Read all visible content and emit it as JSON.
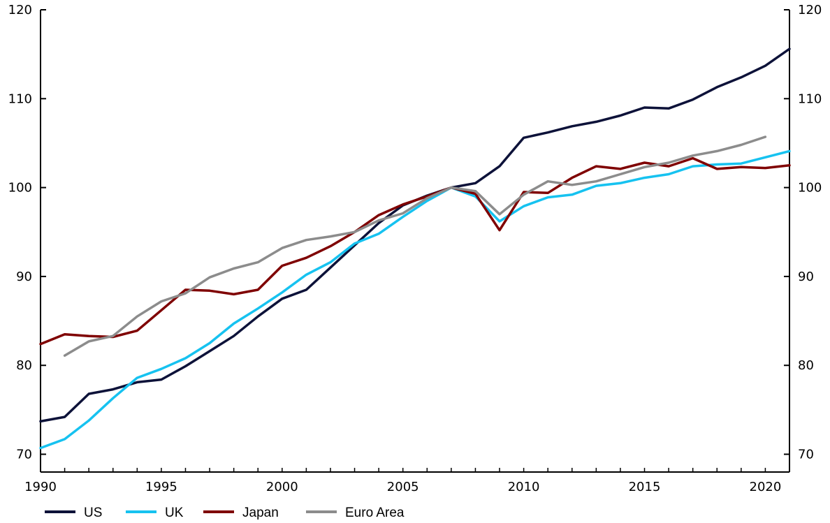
{
  "chart_data": {
    "type": "line",
    "title": "",
    "xlabel": "",
    "ylabel": "",
    "xlim": [
      1990,
      2021
    ],
    "ylim": [
      68,
      120
    ],
    "x_ticks": [
      1990,
      1995,
      2000,
      2005,
      2010,
      2015,
      2020
    ],
    "y_ticks": [
      70,
      80,
      90,
      100,
      110,
      120
    ],
    "grid": false,
    "legend_position": "bottom",
    "secondary_y_axis": true,
    "series": [
      {
        "name": "US",
        "color": "#0d1239",
        "x": [
          1990,
          1991,
          1992,
          1993,
          1994,
          1995,
          1996,
          1997,
          1998,
          1999,
          2000,
          2001,
          2002,
          2003,
          2004,
          2005,
          2006,
          2007,
          2008,
          2009,
          2010,
          2011,
          2012,
          2013,
          2014,
          2015,
          2016,
          2017,
          2018,
          2019,
          2020,
          2021
        ],
        "values": [
          73.7,
          74.2,
          76.8,
          77.3,
          78.1,
          78.4,
          79.9,
          81.6,
          83.3,
          85.5,
          87.5,
          88.5,
          91.0,
          93.5,
          96.0,
          98.0,
          99.1,
          100.0,
          100.5,
          102.4,
          105.6,
          106.2,
          106.9,
          107.4,
          108.1,
          109.0,
          108.9,
          109.9,
          111.3,
          112.4,
          113.7,
          115.6
        ]
      },
      {
        "name": "UK",
        "color": "#16c2f0",
        "x": [
          1990,
          1991,
          1992,
          1993,
          1994,
          1995,
          1996,
          1997,
          1998,
          1999,
          2000,
          2001,
          2002,
          2003,
          2004,
          2005,
          2006,
          2007,
          2008,
          2009,
          2010,
          2011,
          2012,
          2013,
          2014,
          2015,
          2016,
          2017,
          2018,
          2019,
          2020,
          2021
        ],
        "values": [
          70.7,
          71.7,
          73.8,
          76.3,
          78.6,
          79.6,
          80.8,
          82.5,
          84.7,
          86.4,
          88.2,
          90.2,
          91.6,
          93.7,
          94.8,
          96.7,
          98.5,
          100.0,
          99.0,
          96.2,
          97.9,
          98.9,
          99.2,
          100.2,
          100.5,
          101.1,
          101.5,
          102.4,
          102.6,
          102.7,
          103.4,
          104.1
        ]
      },
      {
        "name": "Japan",
        "color": "#7f0000",
        "x": [
          1990,
          1991,
          1992,
          1993,
          1994,
          1995,
          1996,
          1997,
          1998,
          1999,
          2000,
          2001,
          2002,
          2003,
          2004,
          2005,
          2006,
          2007,
          2008,
          2009,
          2010,
          2011,
          2012,
          2013,
          2014,
          2015,
          2016,
          2017,
          2018,
          2019,
          2020,
          2021
        ],
        "values": [
          82.4,
          83.5,
          83.3,
          83.2,
          83.9,
          86.2,
          88.5,
          88.4,
          88.0,
          88.5,
          91.2,
          92.1,
          93.4,
          95.0,
          96.9,
          98.1,
          99.0,
          100.0,
          99.3,
          95.2,
          99.5,
          99.4,
          101.1,
          102.4,
          102.1,
          102.8,
          102.4,
          103.3,
          102.1,
          102.3,
          102.2,
          102.5
        ]
      },
      {
        "name": "Euro Area",
        "color": "#8c8c8c",
        "x": [
          1991,
          1992,
          1993,
          1994,
          1995,
          1996,
          1997,
          1998,
          1999,
          2000,
          2001,
          2002,
          2003,
          2004,
          2005,
          2006,
          2007,
          2008,
          2009,
          2010,
          2011,
          2012,
          2013,
          2014,
          2015,
          2016,
          2017,
          2018,
          2019,
          2020
        ],
        "values": [
          81.1,
          82.7,
          83.3,
          85.5,
          87.2,
          88.1,
          89.9,
          90.9,
          91.6,
          93.2,
          94.1,
          94.5,
          95.0,
          96.3,
          97.1,
          98.8,
          100.0,
          99.6,
          97.0,
          99.2,
          100.7,
          100.3,
          100.7,
          101.5,
          102.3,
          102.8,
          103.6,
          104.1,
          104.8,
          105.7
        ]
      }
    ]
  }
}
